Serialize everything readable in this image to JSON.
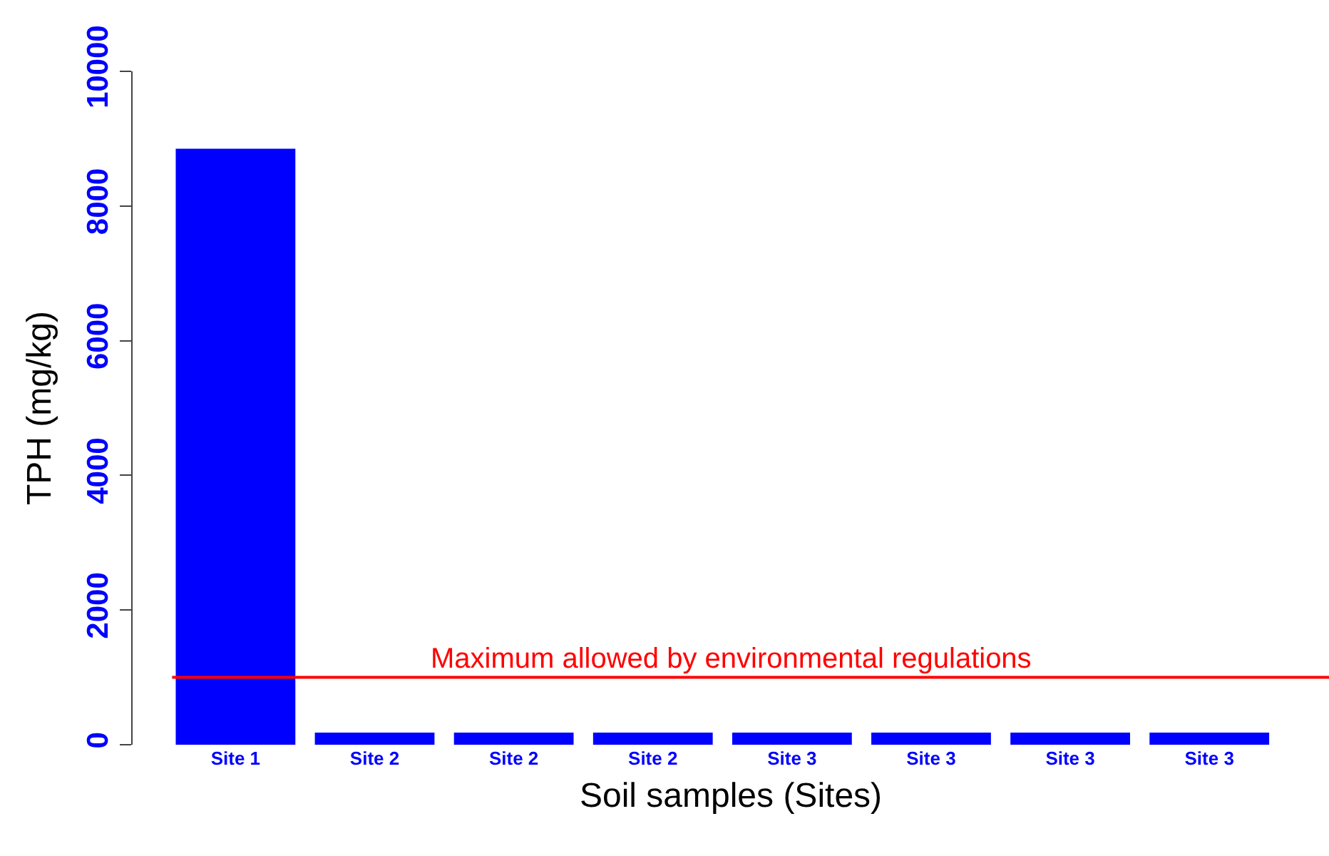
{
  "chart_data": {
    "type": "bar",
    "xlabel": "Soil samples (Sites)",
    "ylabel": "TPH (mg/kg)",
    "categories": [
      "Site 1",
      "Site 2",
      "Site 2",
      "Site 2",
      "Site 3",
      "Site 3",
      "Site 3",
      "Site 3"
    ],
    "values": [
      8850,
      180,
      180,
      180,
      180,
      180,
      180,
      180
    ],
    "color": "#0000ff",
    "ylim": [
      0,
      10000
    ],
    "yticks": [
      0,
      2000,
      4000,
      6000,
      8000,
      10000
    ],
    "ref_lines": [
      {
        "axis": "y",
        "value": 1000,
        "label": "Maximum allowed by environmental regulations",
        "color": "#ff0000",
        "line_style": "solid"
      }
    ],
    "grid": false
  }
}
